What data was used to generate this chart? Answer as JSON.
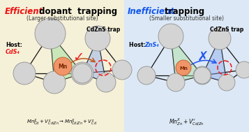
{
  "fig_width": 3.57,
  "fig_height": 1.89,
  "dpi": 100,
  "bg_left_color": "#f5f0d8",
  "bg_right_color": "#dce8f5",
  "title_left_red": "Efficient",
  "title_left_black": " dopant  trapping",
  "subtitle_left": "(Larger substitutional site)",
  "title_right_blue": "Inefficient",
  "title_right_black": " trapping",
  "subtitle_right": "(Smaller substitutional site)",
  "trap_label": "CdZnS trap",
  "host_left_black": "Host:",
  "host_left_red": "CdS₄",
  "host_right_black": "Host: ",
  "host_right_blue": "ZnS₄",
  "sphere_color": "#d4d4d4",
  "sphere_edge": "#909090",
  "mn_color": "#f0956a",
  "mn_edge": "#c05820",
  "green_color": "#a8e0a0",
  "blue_color": "#88aaee",
  "red_color": "#ee2222",
  "blue_mark_color": "#2255ee",
  "bond_color": "#111111",
  "title_red": "#ee1111",
  "title_blue": "#1155ee",
  "eq_color": "#111111"
}
